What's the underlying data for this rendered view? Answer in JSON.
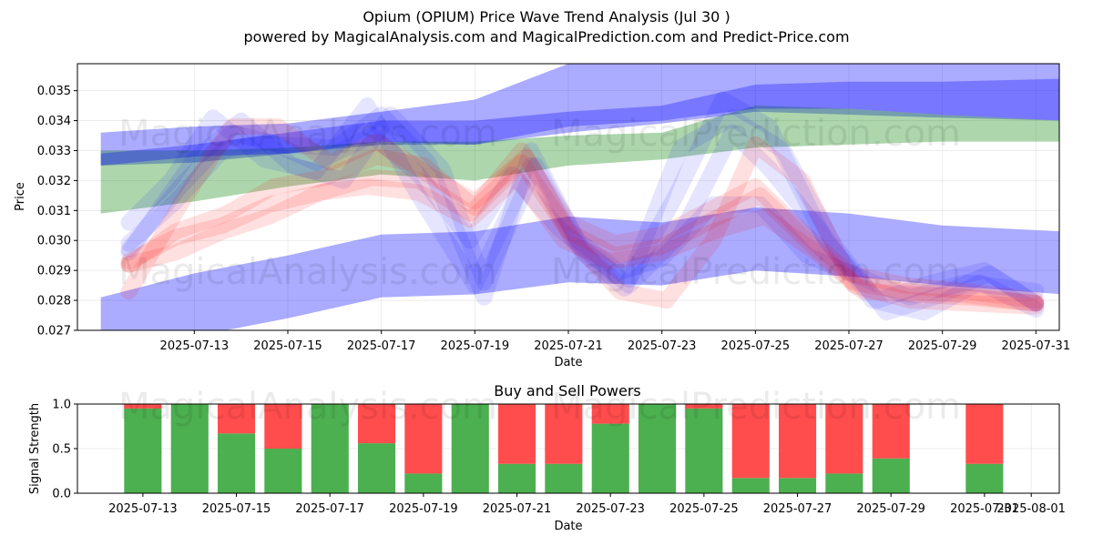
{
  "header": {
    "title": "Opium (OPIUM) Price Wave Trend Analysis (Jul 30 )",
    "subtitle": "powered by MagicalAnalysis.com and MagicalPrediction.com and Predict-Price.com"
  },
  "watermarks": {
    "top_left": "MagicalAnalysis.com",
    "top_right": "MagicalPrediction.com",
    "bottom_left": "MagicalAnalysis.com",
    "bottom_right": "MagicalPrediction.com"
  },
  "colors": {
    "blue_band": "#0000ff",
    "green_band": "#008000",
    "red_wave": "#ff0000",
    "buy": "#4caf50",
    "sell": "#ff4d4d"
  },
  "chart_data": [
    {
      "type": "line",
      "title": "",
      "xlabel": "Date",
      "ylabel": "Price",
      "xlim": [
        "2025-07-10T12:00",
        "2025-07-31T12:00"
      ],
      "ylim": [
        0.027,
        0.0359
      ],
      "yticks": [
        0.027,
        0.028,
        0.029,
        0.03,
        0.031,
        0.032,
        0.033,
        0.034,
        0.035
      ],
      "ytick_labels": [
        "0.027",
        "0.028",
        "0.029",
        "0.030",
        "0.031",
        "0.032",
        "0.033",
        "0.034",
        "0.035"
      ],
      "xtick_labels": [
        "2025-07-13",
        "2025-07-15",
        "2025-07-17",
        "2025-07-19",
        "2025-07-21",
        "2025-07-23",
        "2025-07-25",
        "2025-07-27",
        "2025-07-29",
        "2025-07-31"
      ],
      "grid": true,
      "bands": [
        {
          "name": "upper blue band",
          "color": "blue",
          "x": [
            "2025-07-11",
            "2025-07-13",
            "2025-07-15",
            "2025-07-17",
            "2025-07-19",
            "2025-07-21",
            "2025-07-23",
            "2025-07-25",
            "2025-07-27",
            "2025-07-29",
            "2025-07-31.6"
          ],
          "lower": [
            0.0325,
            0.0326,
            0.0329,
            0.0332,
            0.0332,
            0.0336,
            0.0339,
            0.0343,
            0.0342,
            0.0341,
            0.034
          ],
          "upper": [
            0.0336,
            0.0338,
            0.0339,
            0.0343,
            0.0347,
            0.0359,
            0.0362,
            0.0366,
            0.0368,
            0.037,
            0.0371
          ]
        },
        {
          "name": "green band",
          "color": "green",
          "x": [
            "2025-07-11",
            "2025-07-13",
            "2025-07-15",
            "2025-07-17",
            "2025-07-19",
            "2025-07-21",
            "2025-07-23",
            "2025-07-25",
            "2025-07-27",
            "2025-07-29",
            "2025-07-31.6"
          ],
          "lower": [
            0.0309,
            0.0313,
            0.0318,
            0.0322,
            0.032,
            0.0325,
            0.0327,
            0.0331,
            0.0332,
            0.0333,
            0.0333
          ],
          "upper": [
            0.033,
            0.033,
            0.0331,
            0.0333,
            0.0333,
            0.0335,
            0.0336,
            0.0345,
            0.0344,
            0.0342,
            0.034
          ]
        },
        {
          "name": "dark blue band",
          "color": "blue",
          "x": [
            "2025-07-11",
            "2025-07-13",
            "2025-07-15",
            "2025-07-17",
            "2025-07-19",
            "2025-07-21",
            "2025-07-23",
            "2025-07-25",
            "2025-07-27",
            "2025-07-29",
            "2025-07-31.6"
          ],
          "lower": [
            0.0325,
            0.0328,
            0.0329,
            0.0333,
            0.0332,
            0.0338,
            0.034,
            0.0344,
            0.0344,
            0.0342,
            0.034
          ],
          "upper": [
            0.0329,
            0.0332,
            0.0336,
            0.034,
            0.034,
            0.0343,
            0.0345,
            0.0352,
            0.0353,
            0.0353,
            0.0354
          ]
        },
        {
          "name": "lower blue band",
          "color": "blue",
          "x": [
            "2025-07-11",
            "2025-07-13",
            "2025-07-15",
            "2025-07-17",
            "2025-07-19",
            "2025-07-21",
            "2025-07-23",
            "2025-07-25",
            "2025-07-27",
            "2025-07-29",
            "2025-07-31.6"
          ],
          "lower": [
            0.0264,
            0.0268,
            0.0274,
            0.0281,
            0.0282,
            0.0286,
            0.0285,
            0.029,
            0.0288,
            0.0285,
            0.0282
          ],
          "upper": [
            0.0281,
            0.0289,
            0.0295,
            0.0302,
            0.0303,
            0.0308,
            0.0306,
            0.0311,
            0.0309,
            0.0305,
            0.0303
          ]
        }
      ],
      "waves": [
        {
          "color": "blue",
          "x": [
            "2025-07-11.6",
            "2025-07-12.5",
            "2025-07-13.4",
            "2025-07-14.5",
            "2025-07-15.6",
            "2025-07-16.7",
            "2025-07-17.8",
            "2025-07-19",
            "2025-07-20.2",
            "2025-07-21.3",
            "2025-07-22.2",
            "2025-07-23.3",
            "2025-07-24.3",
            "2025-07-25.3",
            "2025-07-26.5",
            "2025-07-27.6",
            "2025-07-28.8",
            "2025-07-29.9",
            "2025-07-31"
          ],
          "y": [
            0.0306,
            0.032,
            0.0341,
            0.0327,
            0.0323,
            0.0345,
            0.0315,
            0.0285,
            0.0325,
            0.0296,
            0.0284,
            0.0315,
            0.0347,
            0.0338,
            0.03,
            0.028,
            0.0286,
            0.029,
            0.0279
          ]
        },
        {
          "color": "blue",
          "x": [
            "2025-07-11.6",
            "2025-07-12.7",
            "2025-07-13.8",
            "2025-07-14.8",
            "2025-07-16",
            "2025-07-17",
            "2025-07-18",
            "2025-07-19.2",
            "2025-07-20.2",
            "2025-07-21.2",
            "2025-07-22.3",
            "2025-07-23.4",
            "2025-07-24.5",
            "2025-07-25.6",
            "2025-07-26.7",
            "2025-07-27.8",
            "2025-07-29",
            "2025-07-30",
            "2025-07-31"
          ],
          "y": [
            0.0297,
            0.0318,
            0.0336,
            0.0332,
            0.0331,
            0.0342,
            0.0326,
            0.0281,
            0.033,
            0.03,
            0.0287,
            0.0331,
            0.0341,
            0.033,
            0.0298,
            0.0276,
            0.0282,
            0.0289,
            0.0279
          ]
        },
        {
          "color": "blue",
          "x": [
            "2025-07-11.6",
            "2025-07-13",
            "2025-07-14",
            "2025-07-15.1",
            "2025-07-16.2",
            "2025-07-17.2",
            "2025-07-18.3",
            "2025-07-19.2",
            "2025-07-20.3",
            "2025-07-21.3",
            "2025-07-22.3",
            "2025-07-23.4",
            "2025-07-24.5",
            "2025-07-25.3",
            "2025-07-26.4",
            "2025-07-27.5",
            "2025-07-28.6",
            "2025-07-29.8",
            "2025-07-31"
          ],
          "y": [
            0.0296,
            0.0327,
            0.034,
            0.0325,
            0.032,
            0.0342,
            0.0324,
            0.0286,
            0.0325,
            0.0297,
            0.0285,
            0.0302,
            0.0336,
            0.0324,
            0.0303,
            0.028,
            0.0276,
            0.0286,
            0.0277
          ]
        },
        {
          "color": "blue",
          "x": [
            "2025-07-11.6",
            "2025-07-12.6",
            "2025-07-13.6",
            "2025-07-14.6",
            "2025-07-15.6",
            "2025-07-16.8",
            "2025-07-17.8",
            "2025-07-18.9",
            "2025-07-19.8",
            "2025-07-20.8",
            "2025-07-22",
            "2025-07-23",
            "2025-07-24.1",
            "2025-07-25.1",
            "2025-07-26.1",
            "2025-07-27.2",
            "2025-07-28.3",
            "2025-07-29.5",
            "2025-07-31"
          ],
          "y": [
            0.0299,
            0.0313,
            0.033,
            0.0333,
            0.0326,
            0.0335,
            0.0322,
            0.03,
            0.0322,
            0.0304,
            0.0289,
            0.0294,
            0.0312,
            0.0312,
            0.0295,
            0.0288,
            0.0281,
            0.0286,
            0.0283
          ]
        },
        {
          "color": "red",
          "x": [
            "2025-07-11.6",
            "2025-07-12.6",
            "2025-07-13.6",
            "2025-07-14.6",
            "2025-07-15.7",
            "2025-07-16.8",
            "2025-07-17.8",
            "2025-07-18.9",
            "2025-07-20",
            "2025-07-21",
            "2025-07-22",
            "2025-07-23",
            "2025-07-24.1",
            "2025-07-25.1",
            "2025-07-26.1",
            "2025-07-27.1",
            "2025-07-28.2",
            "2025-07-29.4",
            "2025-07-31"
          ],
          "y": [
            0.0293,
            0.0301,
            0.0305,
            0.0312,
            0.0316,
            0.0321,
            0.032,
            0.0309,
            0.0326,
            0.0303,
            0.0295,
            0.0298,
            0.0307,
            0.0315,
            0.03,
            0.0286,
            0.0283,
            0.0282,
            0.0279
          ]
        },
        {
          "color": "red",
          "x": [
            "2025-07-11.6",
            "2025-07-12.6",
            "2025-07-13.7",
            "2025-07-14.7",
            "2025-07-15.8",
            "2025-07-16.9",
            "2025-07-17.9",
            "2025-07-19",
            "2025-07-20",
            "2025-07-21",
            "2025-07-22",
            "2025-07-23",
            "2025-07-24",
            "2025-07-25",
            "2025-07-26",
            "2025-07-27",
            "2025-07-28.2",
            "2025-07-29.5",
            "2025-07-31"
          ],
          "y": [
            0.0292,
            0.0303,
            0.0309,
            0.0318,
            0.0321,
            0.0328,
            0.0325,
            0.0311,
            0.033,
            0.0306,
            0.0299,
            0.0302,
            0.031,
            0.0318,
            0.0303,
            0.0289,
            0.0285,
            0.0283,
            0.028
          ]
        },
        {
          "color": "red",
          "x": [
            "2025-07-11.6",
            "2025-07-12.7",
            "2025-07-13.8",
            "2025-07-14.8",
            "2025-07-15.9",
            "2025-07-16.9",
            "2025-07-18",
            "2025-07-19",
            "2025-07-20.1",
            "2025-07-21.1",
            "2025-07-22.1",
            "2025-07-23.1",
            "2025-07-24.1",
            "2025-07-25",
            "2025-07-26",
            "2025-07-27.1",
            "2025-07-28.3",
            "2025-07-29.6",
            "2025-07-31"
          ],
          "y": [
            0.0283,
            0.0312,
            0.0338,
            0.0338,
            0.0326,
            0.0333,
            0.0322,
            0.0313,
            0.0328,
            0.03,
            0.0283,
            0.028,
            0.03,
            0.0332,
            0.032,
            0.0285,
            0.028,
            0.0279,
            0.0278
          ]
        },
        {
          "color": "red",
          "x": [
            "2025-07-11.6",
            "2025-07-12.6",
            "2025-07-13.6",
            "2025-07-14.6",
            "2025-07-15.7",
            "2025-07-16.7",
            "2025-07-17.8",
            "2025-07-18.9",
            "2025-07-19.9",
            "2025-07-20.9",
            "2025-07-21.9",
            "2025-07-23",
            "2025-07-24.1",
            "2025-07-25.2",
            "2025-07-26.3",
            "2025-07-27.3",
            "2025-07-28.4",
            "2025-07-29.6",
            "2025-07-31"
          ],
          "y": [
            0.0292,
            0.0296,
            0.0303,
            0.0308,
            0.0316,
            0.0318,
            0.0316,
            0.0307,
            0.0321,
            0.03,
            0.0293,
            0.0296,
            0.0303,
            0.0308,
            0.0296,
            0.0283,
            0.0282,
            0.0281,
            0.0279
          ]
        }
      ]
    },
    {
      "type": "bar",
      "stacked": true,
      "title": "Buy and Sell Powers",
      "xlabel": "Date",
      "ylabel": "Signal Strength",
      "xlim": [
        "2025-07-11.6",
        "2025-08-01.6"
      ],
      "ylim": [
        0,
        1
      ],
      "yticks": [
        0,
        0.5,
        1
      ],
      "ytick_labels": [
        "0.0",
        "0.5",
        "1.0"
      ],
      "xtick_labels": [
        "2025-07-13",
        "2025-07-15",
        "2025-07-17",
        "2025-07-19",
        "2025-07-21",
        "2025-07-23",
        "2025-07-25",
        "2025-07-27",
        "2025-07-29",
        "2025-07-31",
        "2025-08-01"
      ],
      "grid": true,
      "categories": [
        "2025-07-13",
        "2025-07-14",
        "2025-07-15",
        "2025-07-16",
        "2025-07-17",
        "2025-07-18",
        "2025-07-19",
        "2025-07-20",
        "2025-07-21",
        "2025-07-22",
        "2025-07-23",
        "2025-07-24",
        "2025-07-25",
        "2025-07-26",
        "2025-07-27",
        "2025-07-28",
        "2025-07-29",
        "2025-07-31"
      ],
      "series": [
        {
          "name": "Buy",
          "values": [
            0.95,
            1.0,
            0.67,
            0.5,
            1.0,
            0.56,
            0.22,
            1.0,
            0.33,
            0.33,
            0.78,
            1.0,
            0.95,
            0.17,
            0.17,
            0.22,
            0.39,
            0.33
          ]
        },
        {
          "name": "Sell",
          "values": [
            0.05,
            0.0,
            0.33,
            0.5,
            0.0,
            0.44,
            0.78,
            0.0,
            0.67,
            0.67,
            0.22,
            0.0,
            0.05,
            0.83,
            0.83,
            0.78,
            0.61,
            0.67
          ]
        }
      ]
    }
  ]
}
